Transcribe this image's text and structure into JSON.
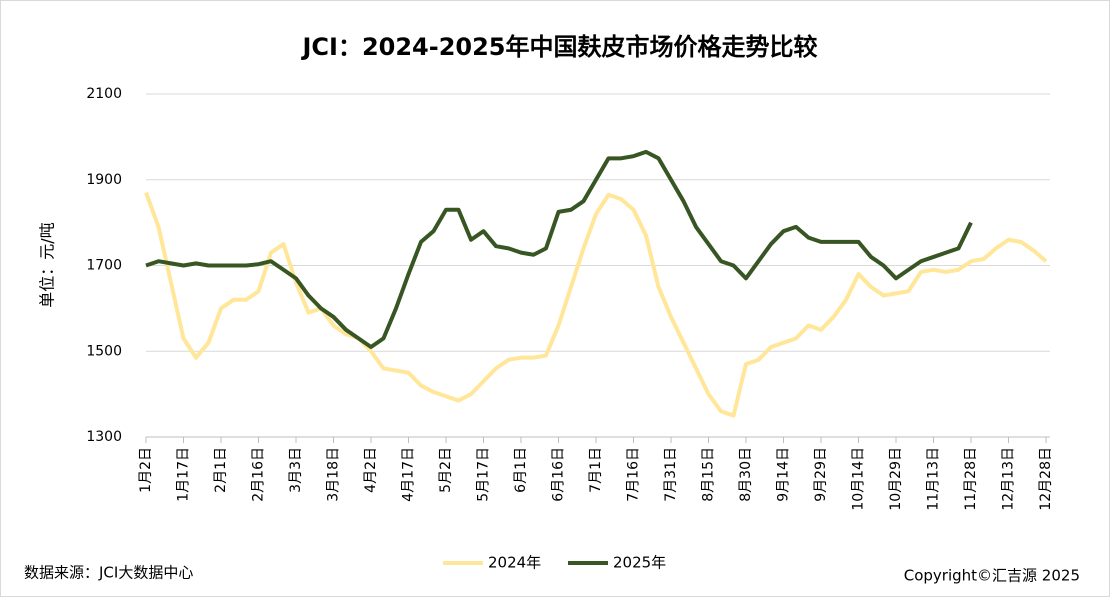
{
  "chart_data": {
    "type": "line",
    "title": "JCI：2024-2025年中国麸皮市场价格走势比较",
    "y_label": "单位：元/吨",
    "source": "数据来源：JCI大数据中心",
    "copyright": "Copyright©汇吉源 2025",
    "categories": [
      "1月2日",
      null,
      null,
      "1月17日",
      null,
      null,
      "2月1日",
      null,
      null,
      "2月16日",
      null,
      null,
      "3月3日",
      null,
      null,
      "3月18日",
      null,
      null,
      "4月2日",
      null,
      null,
      "4月17日",
      null,
      null,
      "5月2日",
      null,
      null,
      "5月17日",
      null,
      null,
      "6月1日",
      null,
      null,
      "6月16日",
      null,
      null,
      "7月1日",
      null,
      null,
      "7月16日",
      null,
      null,
      "7月31日",
      null,
      null,
      "8月15日",
      null,
      null,
      "8月30日",
      null,
      null,
      "9月14日",
      null,
      null,
      "9月29日",
      null,
      null,
      "10月14日",
      null,
      null,
      "10月29日",
      null,
      null,
      "11月13日",
      null,
      null,
      "11月28日",
      null,
      null,
      "12月13日",
      null,
      null,
      "12月28日"
    ],
    "series": [
      {
        "name": "2024年",
        "color": "#ffe699",
        "values": [
          1870,
          1790,
          1660,
          1530,
          1485,
          1520,
          1600,
          1620,
          1620,
          1640,
          1730,
          1750,
          1660,
          1590,
          1600,
          1560,
          1540,
          1530,
          1500,
          1460,
          1455,
          1450,
          1420,
          1405,
          1395,
          1385,
          1400,
          1430,
          1460,
          1480,
          1485,
          1485,
          1490,
          1560,
          1650,
          1740,
          1820,
          1865,
          1855,
          1830,
          1770,
          1650,
          1580,
          1520,
          1460,
          1400,
          1360,
          1350,
          1470,
          1480,
          1510,
          1520,
          1530,
          1560,
          1550,
          1580,
          1620,
          1680,
          1650,
          1630,
          1635,
          1640,
          1685,
          1690,
          1685,
          1690,
          1710,
          1715,
          1740,
          1760,
          1755,
          1735,
          1710
        ]
      },
      {
        "name": "2025年",
        "color": "#375623",
        "values": [
          1700,
          1710,
          1705,
          1700,
          1705,
          1700,
          1700,
          1700,
          1700,
          1703,
          1710,
          1690,
          1670,
          1630,
          1600,
          1580,
          1550,
          1530,
          1510,
          1530,
          1600,
          1680,
          1755,
          1780,
          1830,
          1830,
          1760,
          1780,
          1745,
          1740,
          1730,
          1725,
          1740,
          1825,
          1830,
          1850,
          1900,
          1950,
          1950,
          1955,
          1965,
          1950,
          1900,
          1850,
          1790,
          1750,
          1710,
          1700,
          1670,
          1710,
          1750,
          1780,
          1790,
          1765,
          1755,
          1755,
          1755,
          1755,
          1720,
          1700,
          1670,
          1690,
          1710,
          1720,
          1730,
          1740,
          1800,
          null,
          null,
          null,
          null,
          null,
          null
        ]
      }
    ],
    "ylim": [
      1300,
      2100
    ],
    "yticks": [
      1300,
      1500,
      1700,
      1900,
      2100
    ],
    "grid": true
  }
}
